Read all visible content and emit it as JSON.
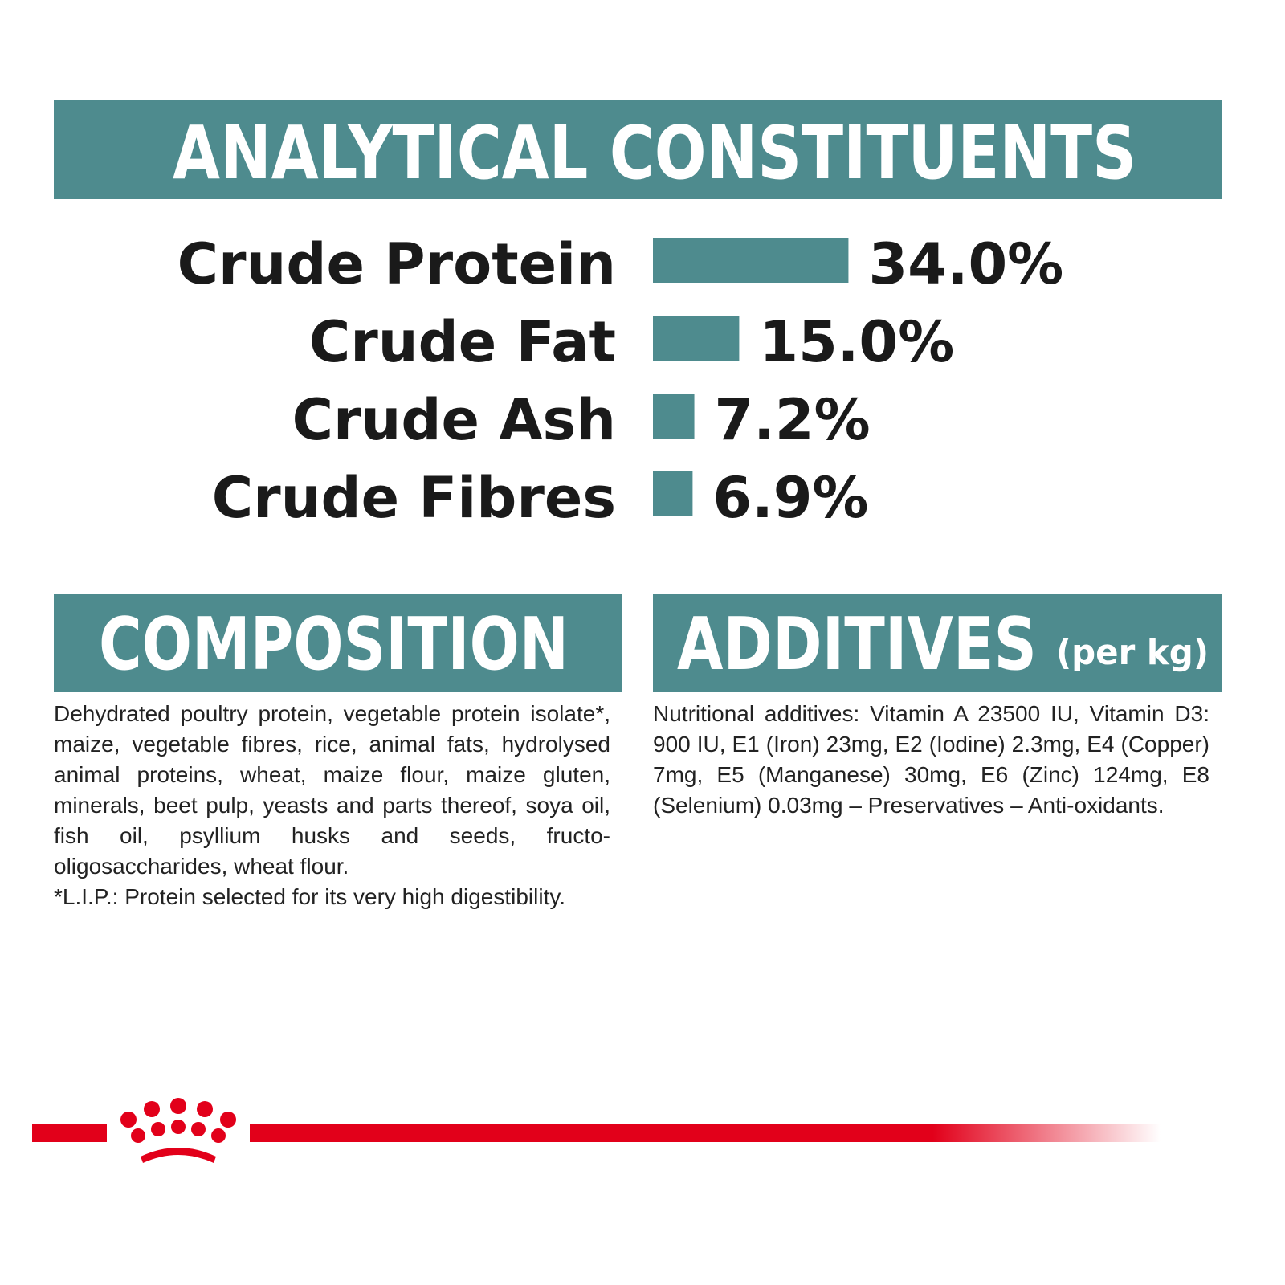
{
  "chart_data": {
    "type": "bar",
    "orientation": "horizontal",
    "title": "ANALYTICAL CONSTITUENTS",
    "categories": [
      "Crude Protein",
      "Crude Fat",
      "Crude Ash",
      "Crude Fibres"
    ],
    "values": [
      34.0,
      15.0,
      7.2,
      6.9
    ],
    "value_labels": [
      "34.0%",
      "15.0%",
      "7.2%",
      "6.9%"
    ],
    "color": "#4e8b8e"
  },
  "composition": {
    "title": "COMPOSITION",
    "text": "Dehydrated poultry protein, vegetable protein isolate*, maize, vegetable fibres, rice, animal fats, hydrolysed animal proteins, wheat, maize flour, maize gluten, minerals, beet pulp, yeasts and parts thereof, soya oil, fish oil, psyllium husks and seeds, fructo-oligosaccharides, wheat flour.",
    "footnote": "*L.I.P.: Protein selected for its very high digestibility."
  },
  "additives": {
    "title": "ADDITIVES",
    "subtitle": "(per kg)",
    "text": "Nutritional additives: Vitamin A 23500 IU, Vitamin D3: 900 IU, E1 (Iron) 23mg, E2 (Iodine) 2.3mg, E4 (Copper) 7mg, E5 (Manganese) 30mg, E6 (Zinc) 124mg, E8 (Selenium) 0.03mg – Preservatives – Anti-oxidants."
  }
}
